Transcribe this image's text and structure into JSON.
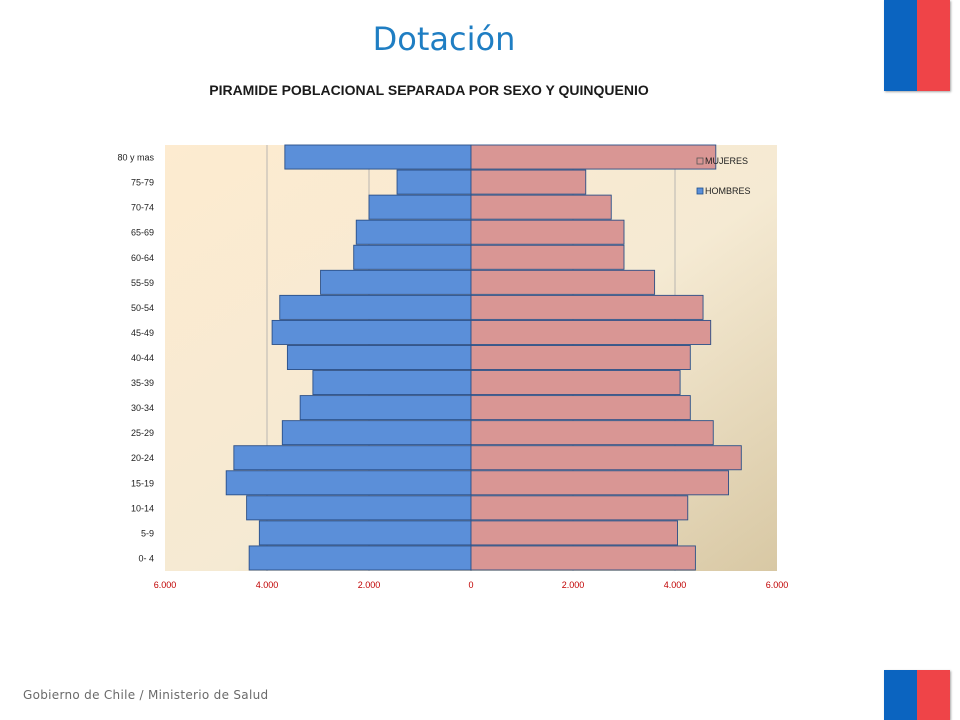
{
  "page": {
    "title": "Dotación",
    "footer": "Gobierno de Chile / Ministerio de Salud"
  },
  "colors": {
    "title": "#1f7ec3",
    "hombres": "#5b8fd9",
    "mujeres": "#d99694",
    "flag_blue": "#0b64c0",
    "flag_red": "#ef4448",
    "x_tick_labels": "#c00000"
  },
  "icons": [
    "chile-flag-top-icon",
    "chile-flag-bottom-icon"
  ],
  "chart_data": {
    "type": "bar",
    "orientation": "horizontal",
    "title": "PIRAMIDE POBLACIONAL SEPARADA POR SEXO Y QUINQUENIO",
    "categories": [
      "0- 4",
      "5-9",
      "10-14",
      "15-19",
      "20-24",
      "25-29",
      "30-34",
      "35-39",
      "40-44",
      "45-49",
      "50-54",
      "55-59",
      "60-64",
      "65-69",
      "70-74",
      "75-79",
      "80 y mas"
    ],
    "series": [
      {
        "name": "HOMBRES",
        "side": "left",
        "values": [
          4350,
          4150,
          4400,
          4800,
          4650,
          3700,
          3350,
          3100,
          3600,
          3900,
          3750,
          2950,
          2300,
          2250,
          2000,
          1450,
          3650
        ]
      },
      {
        "name": "MUJERES",
        "side": "right",
        "values": [
          4400,
          4050,
          4250,
          5050,
          5300,
          4750,
          4300,
          4100,
          4300,
          4700,
          4550,
          3600,
          3000,
          3000,
          2750,
          2250,
          4800
        ]
      }
    ],
    "xlim": [
      -6000,
      6000
    ],
    "x_ticks": [
      -6000,
      -4000,
      -2000,
      0,
      2000,
      4000,
      6000
    ],
    "x_tick_labels": [
      "6.000",
      "4.000",
      "2.000",
      "0",
      "2.000",
      "4.000",
      "6.000"
    ],
    "legend": [
      "MUJERES",
      "HOMBRES"
    ],
    "legend_position": "top-right",
    "grid": "vertical"
  }
}
